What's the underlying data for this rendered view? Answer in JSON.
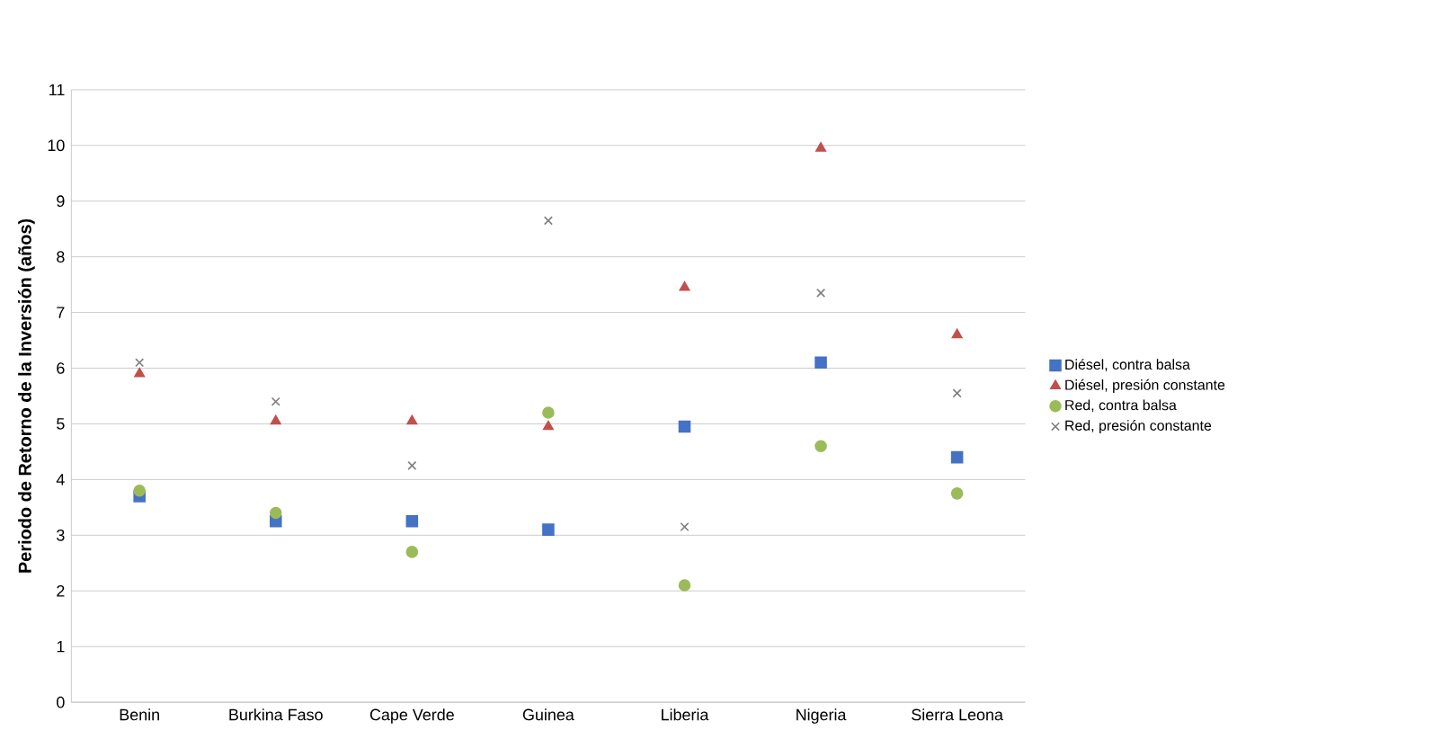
{
  "chart_data": {
    "type": "scatter",
    "ylabel": "Periodo de Retorno de la Inversión (años)",
    "categories": [
      "Benin",
      "Burkina Faso",
      "Cape Verde",
      "Guinea",
      "Liberia",
      "Nigeria",
      "Sierra Leona"
    ],
    "series": [
      {
        "name": "Diésel, contra balsa",
        "color": "#4472c4",
        "marker": "square",
        "values": [
          3.7,
          3.25,
          3.25,
          3.1,
          4.95,
          6.1,
          4.4
        ]
      },
      {
        "name": "Diésel, presión constante",
        "color": "#c0504d",
        "marker": "triangle",
        "values": [
          5.9,
          5.05,
          5.05,
          4.95,
          7.45,
          9.95,
          6.6
        ]
      },
      {
        "name": "Red, contra balsa",
        "color": "#9bbb59",
        "marker": "circle",
        "values": [
          3.8,
          3.4,
          2.7,
          5.2,
          2.1,
          4.6,
          3.75
        ]
      },
      {
        "name": "Red, presión constante",
        "color": "#7f7f7f",
        "marker": "cross",
        "values": [
          6.1,
          5.4,
          4.25,
          8.65,
          3.15,
          7.35,
          5.55
        ]
      }
    ],
    "ylim": [
      0,
      11
    ],
    "yticks": [
      0,
      1,
      2,
      3,
      4,
      5,
      6,
      7,
      8,
      9,
      10,
      11
    ],
    "grid": "y",
    "legend": "right"
  }
}
